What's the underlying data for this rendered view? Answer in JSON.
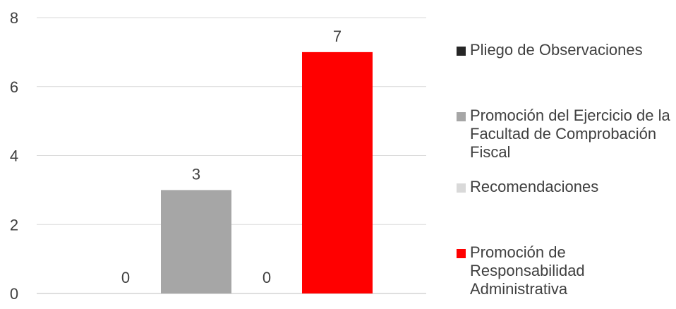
{
  "chart_data": {
    "type": "bar",
    "categories": [
      "Pliego de Observaciones",
      "Promoción del Ejercicio de la Facultad de Comprobación Fiscal",
      "Recomendaciones",
      "Promoción de Responsabilidad Administrativa"
    ],
    "values": [
      0,
      3,
      0,
      7
    ],
    "value_labels": [
      "0",
      "3",
      "0",
      "7"
    ],
    "colors": [
      "#262626",
      "#a6a6a6",
      "#d9d9d9",
      "#ff0000"
    ],
    "ylim": [
      0,
      8
    ],
    "yticks": [
      0,
      2,
      4,
      6,
      8
    ],
    "ytick_labels": [
      "0",
      "2",
      "4",
      "6",
      "8"
    ],
    "grid": true,
    "legend_position": "right",
    "title": "",
    "xlabel": "",
    "ylabel": ""
  },
  "legend": [
    {
      "label": "Pliego de Observaciones",
      "color": "#262626"
    },
    {
      "label": "Promoción del Ejercicio de la Facultad de Comprobación Fiscal",
      "color": "#a6a6a6"
    },
    {
      "label": "Recomendaciones",
      "color": "#d9d9d9"
    },
    {
      "label": "Promoción de Responsabilidad Administrativa",
      "color": "#ff0000"
    }
  ]
}
